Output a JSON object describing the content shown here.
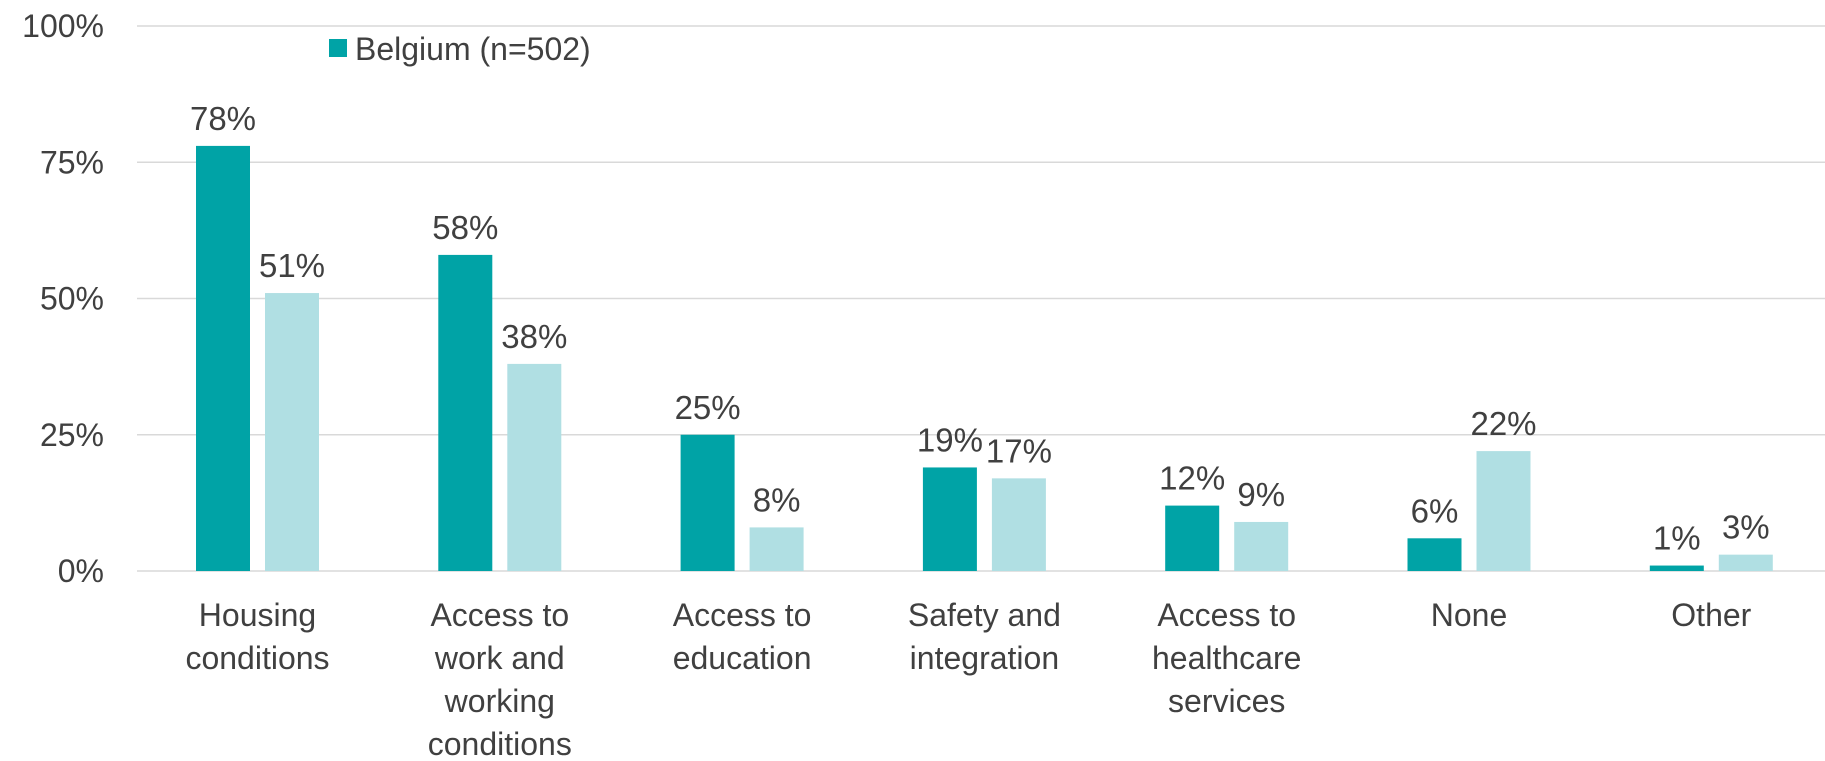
{
  "chart_data": {
    "type": "bar",
    "categories": [
      [
        "Housing",
        "conditions"
      ],
      [
        "Access to",
        "work and",
        "working",
        "conditions"
      ],
      [
        "Access to",
        "education"
      ],
      [
        "Safety and",
        "integration"
      ],
      [
        "Access to",
        "healthcare",
        "services"
      ],
      [
        "None"
      ],
      [
        "Other"
      ]
    ],
    "series": [
      {
        "name": "Belgium (n=502)",
        "color": "#00a3a6",
        "values": [
          78,
          58,
          25,
          19,
          12,
          6,
          1
        ]
      },
      {
        "color": "#b0dfe3",
        "values": [
          51,
          38,
          8,
          17,
          9,
          22,
          3
        ]
      }
    ],
    "value_suffix": "%",
    "ylim": [
      0,
      100
    ],
    "yticks": [
      "0%",
      "25%",
      "50%",
      "75%",
      "100%"
    ],
    "ytick_values": [
      0,
      25,
      50,
      75,
      100
    ],
    "grid": true,
    "legend_position": "top-left"
  }
}
